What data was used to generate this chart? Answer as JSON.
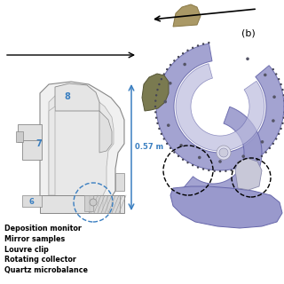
{
  "background_color": "#ffffff",
  "legend_items": [
    "Deposition monitor",
    "Mirror samples",
    "Louvre clip",
    "Rotating collector",
    "Quartz microbalance"
  ],
  "label_b": "(b)",
  "dimension_label": "0.57 m",
  "label_8": "8",
  "label_7": "7",
  "label_6": "6",
  "blue_color": "#3a7fc1",
  "dim_color": "#3a7fc1",
  "text_color": "#000000",
  "cad_main": "#9999cc",
  "cad_dark": "#6666aa",
  "cad_light": "#bbbbdd",
  "cad_darker": "#7777aa",
  "sketch_fill": "#f2f2f2",
  "sketch_edge": "#888888",
  "green_fill": "#5a6040",
  "green_edge": "#333322"
}
